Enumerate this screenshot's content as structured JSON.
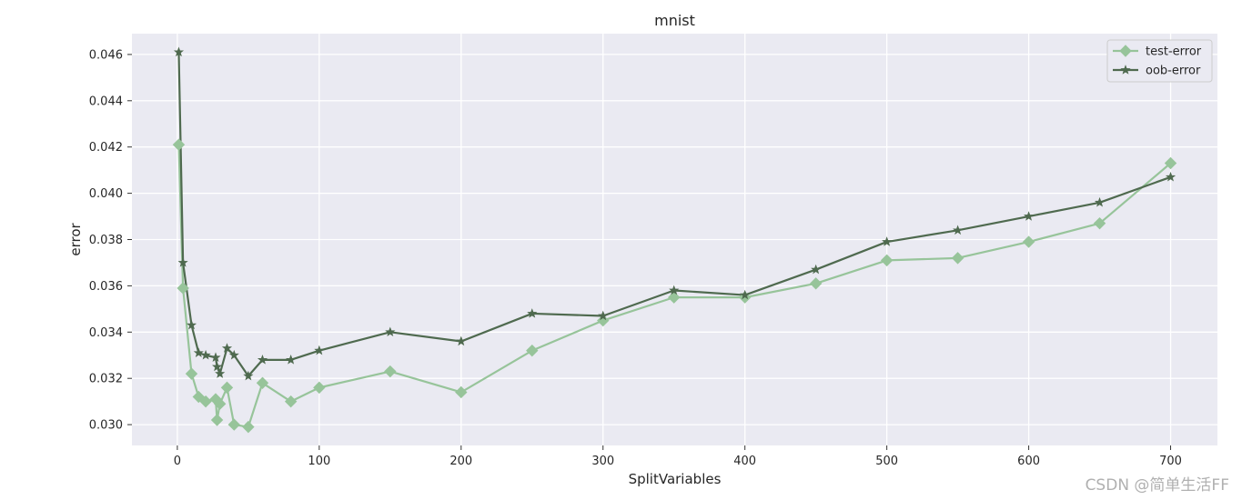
{
  "chart_data": {
    "type": "line",
    "title": "mnist",
    "xlabel": "SplitVariables",
    "ylabel": "error",
    "xlim": [
      -32,
      733
    ],
    "ylim": [
      0.0291,
      0.0469
    ],
    "xticks": [
      0,
      100,
      200,
      300,
      400,
      500,
      600,
      700
    ],
    "xtick_labels": [
      "0",
      "100",
      "200",
      "300",
      "400",
      "500",
      "600",
      "700"
    ],
    "yticks": [
      0.03,
      0.032,
      0.034,
      0.036,
      0.038,
      0.04,
      0.042,
      0.044,
      0.046
    ],
    "ytick_labels": [
      "0.030",
      "0.032",
      "0.034",
      "0.036",
      "0.038",
      "0.040",
      "0.042",
      "0.044",
      "0.046"
    ],
    "grid": true,
    "legend_position": "top-right",
    "series": [
      {
        "name": "test-error",
        "color": "#97c49a",
        "marker": "diamond",
        "points": [
          [
            1,
            0.0421
          ],
          [
            4,
            0.0359
          ],
          [
            10,
            0.0322
          ],
          [
            15,
            0.0312
          ],
          [
            20,
            0.031
          ],
          [
            27,
            0.0311
          ],
          [
            28,
            0.0302
          ],
          [
            30,
            0.0309
          ],
          [
            35,
            0.0316
          ],
          [
            40,
            0.03
          ],
          [
            50,
            0.0299
          ],
          [
            60,
            0.0318
          ],
          [
            80,
            0.031
          ],
          [
            100,
            0.0316
          ],
          [
            150,
            0.0323
          ],
          [
            200,
            0.0314
          ],
          [
            250,
            0.0332
          ],
          [
            300,
            0.0345
          ],
          [
            350,
            0.0355
          ],
          [
            400,
            0.0355
          ],
          [
            450,
            0.0361
          ],
          [
            500,
            0.0371
          ],
          [
            550,
            0.0372
          ],
          [
            600,
            0.0379
          ],
          [
            650,
            0.0387
          ],
          [
            700,
            0.0413
          ]
        ]
      },
      {
        "name": "oob-error",
        "color": "#4f6a4f",
        "marker": "star",
        "points": [
          [
            1,
            0.0461
          ],
          [
            4,
            0.037
          ],
          [
            10,
            0.0343
          ],
          [
            15,
            0.0331
          ],
          [
            20,
            0.033
          ],
          [
            27,
            0.0329
          ],
          [
            28,
            0.0325
          ],
          [
            30,
            0.0322
          ],
          [
            35,
            0.0333
          ],
          [
            40,
            0.033
          ],
          [
            50,
            0.0321
          ],
          [
            60,
            0.0328
          ],
          [
            80,
            0.0328
          ],
          [
            100,
            0.0332
          ],
          [
            150,
            0.034
          ],
          [
            200,
            0.0336
          ],
          [
            250,
            0.0348
          ],
          [
            300,
            0.0347
          ],
          [
            350,
            0.0358
          ],
          [
            400,
            0.0356
          ],
          [
            450,
            0.0367
          ],
          [
            500,
            0.0379
          ],
          [
            550,
            0.0384
          ],
          [
            600,
            0.039
          ],
          [
            650,
            0.0396
          ],
          [
            700,
            0.0407
          ]
        ]
      }
    ]
  },
  "watermark": "CSDN @简单生活FF"
}
